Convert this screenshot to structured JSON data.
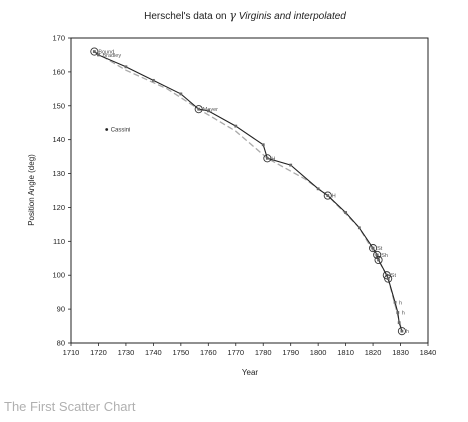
{
  "caption": "The First Scatter Chart",
  "chart_data": {
    "type": "scatter",
    "title": "Herschel's data on γ Virginis and interpolated",
    "title_parts": {
      "prefix": "Herschel's data on ",
      "symbol": "γ",
      "suffix": " Virginis and interpolated"
    },
    "xlabel": "Year",
    "ylabel": "Position Angle (deg)",
    "xlim": [
      1710,
      1840
    ],
    "ylim": [
      80,
      170
    ],
    "xticks": [
      1710,
      1720,
      1730,
      1740,
      1750,
      1760,
      1770,
      1780,
      1790,
      1800,
      1810,
      1820,
      1830,
      1840
    ],
    "yticks": [
      80,
      90,
      100,
      110,
      120,
      130,
      140,
      150,
      160,
      170
    ],
    "grid": false,
    "colors": {
      "observed": "#222222",
      "interpolated": "#aaaaaa",
      "markers": "#666666"
    },
    "observed": [
      {
        "x": 1718.5,
        "y": 166,
        "label": "Bound",
        "ring": true
      },
      {
        "x": 1720,
        "y": 165,
        "label": "Bradley",
        "ring": false
      },
      {
        "x": 1730,
        "y": 161.5,
        "label": "",
        "ring": false
      },
      {
        "x": 1740,
        "y": 157.5,
        "label": "",
        "ring": false
      },
      {
        "x": 1750,
        "y": 153.5,
        "label": "",
        "ring": false
      },
      {
        "x": 1756.5,
        "y": 149,
        "label": "Mayer",
        "ring": true
      },
      {
        "x": 1760,
        "y": 148.5,
        "label": "",
        "ring": false
      },
      {
        "x": 1770,
        "y": 144,
        "label": "",
        "ring": false
      },
      {
        "x": 1780,
        "y": 138.5,
        "label": "",
        "ring": false
      },
      {
        "x": 1781.5,
        "y": 134.5,
        "label": "H",
        "ring": true
      },
      {
        "x": 1790,
        "y": 132.5,
        "label": "",
        "ring": false
      },
      {
        "x": 1800,
        "y": 125.5,
        "label": "",
        "ring": false
      },
      {
        "x": 1803.5,
        "y": 123.5,
        "label": "H",
        "ring": true
      },
      {
        "x": 1810,
        "y": 118.5,
        "label": "",
        "ring": false
      },
      {
        "x": 1815,
        "y": 114,
        "label": "",
        "ring": false
      },
      {
        "x": 1820,
        "y": 108,
        "label": "St",
        "ring": true
      },
      {
        "x": 1821.5,
        "y": 106,
        "label": "Sh",
        "ring": true
      },
      {
        "x": 1822,
        "y": 104.5,
        "label": "",
        "ring": true
      },
      {
        "x": 1825,
        "y": 100,
        "label": "St",
        "ring": true
      },
      {
        "x": 1825.5,
        "y": 99,
        "label": "",
        "ring": true
      },
      {
        "x": 1828,
        "y": 92,
        "label": "h",
        "ring": false
      },
      {
        "x": 1829,
        "y": 89,
        "label": "h",
        "ring": false
      },
      {
        "x": 1829.5,
        "y": 86,
        "label": "",
        "ring": false
      },
      {
        "x": 1830.5,
        "y": 83.5,
        "label": "h",
        "ring": true
      }
    ],
    "interpolated": [
      {
        "x": 1718.5,
        "y": 166
      },
      {
        "x": 1730,
        "y": 160.5
      },
      {
        "x": 1745,
        "y": 155
      },
      {
        "x": 1756.5,
        "y": 149
      },
      {
        "x": 1770,
        "y": 142.5
      },
      {
        "x": 1781.5,
        "y": 134.5
      },
      {
        "x": 1795,
        "y": 128.5
      },
      {
        "x": 1803.5,
        "y": 123.5
      },
      {
        "x": 1815,
        "y": 114
      },
      {
        "x": 1822,
        "y": 104.5
      },
      {
        "x": 1825.5,
        "y": 99
      },
      {
        "x": 1830.5,
        "y": 83.5
      }
    ],
    "outlier": {
      "x": 1723,
      "y": 143,
      "label": "Cassini"
    }
  }
}
